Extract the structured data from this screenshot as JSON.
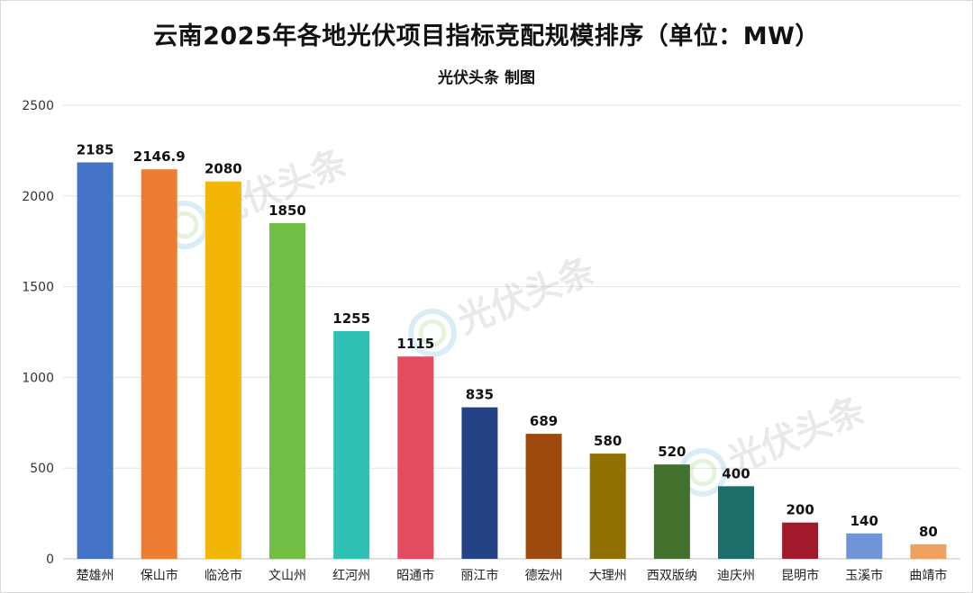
{
  "chart_data": {
    "type": "bar",
    "title": "云南2025年各地光伏项目指标竞配规模排序（单位：MW）",
    "subtitle": "光伏头条 制图",
    "categories": [
      "楚雄州",
      "保山市",
      "临沧市",
      "文山州",
      "红河州",
      "昭通市",
      "丽江市",
      "德宏州",
      "大理州",
      "西双版纳",
      "迪庆州",
      "昆明市",
      "玉溪市",
      "曲靖市"
    ],
    "values": [
      2185,
      2146.9,
      2080,
      1850,
      1255,
      1115,
      835,
      689,
      580,
      520,
      400,
      200,
      140,
      80
    ],
    "value_labels": [
      "2185",
      "2146.9",
      "2080",
      "1850",
      "1255",
      "1115",
      "835",
      "689",
      "580",
      "520",
      "400",
      "200",
      "140",
      "80"
    ],
    "colors": [
      "#4472C4",
      "#ED7D31",
      "#F2B705",
      "#70BE44",
      "#2FC1B3",
      "#E54B5E",
      "#244386",
      "#9E4A0E",
      "#8F7000",
      "#43712D",
      "#1C6E6A",
      "#A3192C",
      "#7095D6",
      "#F0A160"
    ],
    "ylim": [
      0,
      2500
    ],
    "yticks": [
      0,
      500,
      1000,
      1500,
      2000,
      2500
    ],
    "grid": true,
    "xlabel": "",
    "ylabel": "",
    "watermark": "光伏头条"
  }
}
